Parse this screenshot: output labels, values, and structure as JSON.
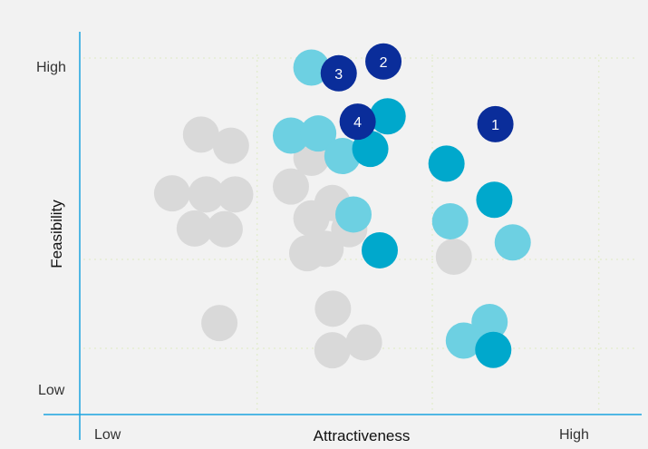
{
  "chart_data": {
    "type": "scatter",
    "xlabel": "Attractiveness",
    "ylabel": "Feasibility",
    "x_ticks": [
      "Low",
      "High"
    ],
    "y_ticks": [
      "High",
      "Low"
    ],
    "xlim": [
      0,
      10
    ],
    "ylim": [
      0,
      10
    ],
    "grid": "dotted",
    "colors": {
      "gray": "#d9d9d9",
      "light_blue": "#6dd0e2",
      "teal": "#00a8cc",
      "navy": "#0a2d9a",
      "axis": "#1aa3e0",
      "grid": "#e4ecd2"
    },
    "points": [
      {
        "x": 2.1,
        "y": 7.51,
        "color": "gray"
      },
      {
        "x": 2.67,
        "y": 7.2,
        "color": "gray"
      },
      {
        "x": 1.55,
        "y": 5.87,
        "color": "gray"
      },
      {
        "x": 2.2,
        "y": 5.84,
        "color": "gray"
      },
      {
        "x": 2.75,
        "y": 5.84,
        "color": "gray"
      },
      {
        "x": 1.98,
        "y": 4.89,
        "color": "gray"
      },
      {
        "x": 2.55,
        "y": 4.87,
        "color": "gray"
      },
      {
        "x": 4.2,
        "y": 6.86,
        "color": "gray"
      },
      {
        "x": 3.81,
        "y": 6.06,
        "color": "gray"
      },
      {
        "x": 4.6,
        "y": 5.6,
        "color": "gray"
      },
      {
        "x": 4.2,
        "y": 5.17,
        "color": "gray"
      },
      {
        "x": 4.92,
        "y": 4.87,
        "color": "gray"
      },
      {
        "x": 4.12,
        "y": 4.2,
        "color": "gray"
      },
      {
        "x": 4.47,
        "y": 4.32,
        "color": "gray"
      },
      {
        "x": 2.45,
        "y": 2.25,
        "color": "gray"
      },
      {
        "x": 4.61,
        "y": 2.65,
        "color": "gray"
      },
      {
        "x": 4.6,
        "y": 1.49,
        "color": "gray"
      },
      {
        "x": 5.2,
        "y": 1.71,
        "color": "gray"
      },
      {
        "x": 6.91,
        "y": 4.1,
        "color": "gray"
      },
      {
        "x": 4.2,
        "y": 9.38,
        "color": "light_blue"
      },
      {
        "x": 3.81,
        "y": 7.48,
        "color": "light_blue"
      },
      {
        "x": 4.33,
        "y": 7.54,
        "color": "light_blue"
      },
      {
        "x": 4.79,
        "y": 6.91,
        "color": "light_blue"
      },
      {
        "x": 5.0,
        "y": 5.28,
        "color": "light_blue"
      },
      {
        "x": 6.84,
        "y": 5.09,
        "color": "light_blue"
      },
      {
        "x": 8.03,
        "y": 4.5,
        "color": "light_blue"
      },
      {
        "x": 7.59,
        "y": 2.28,
        "color": "light_blue"
      },
      {
        "x": 7.1,
        "y": 1.76,
        "color": "light_blue"
      },
      {
        "x": 5.65,
        "y": 8.02,
        "color": "teal"
      },
      {
        "x": 5.32,
        "y": 7.11,
        "color": "teal"
      },
      {
        "x": 6.77,
        "y": 6.7,
        "color": "teal"
      },
      {
        "x": 7.68,
        "y": 5.69,
        "color": "teal"
      },
      {
        "x": 5.5,
        "y": 4.28,
        "color": "teal"
      },
      {
        "x": 7.66,
        "y": 1.5,
        "color": "teal"
      },
      {
        "x": 7.7,
        "y": 7.8,
        "color": "navy",
        "label": "1"
      },
      {
        "x": 5.57,
        "y": 9.55,
        "color": "navy",
        "label": "2"
      },
      {
        "x": 4.72,
        "y": 9.22,
        "color": "navy",
        "label": "3"
      },
      {
        "x": 5.08,
        "y": 7.87,
        "color": "navy",
        "label": "4"
      }
    ]
  }
}
